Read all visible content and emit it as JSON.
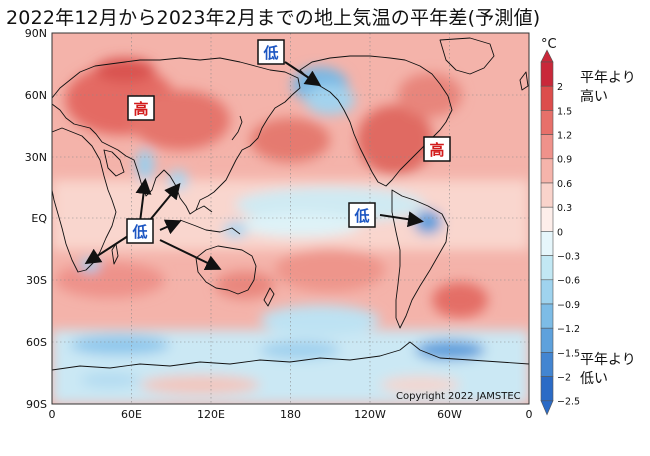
{
  "title": "2022年12月から2023年2月までの地上気温の平年差(予測値)",
  "map": {
    "lat_labels": [
      "90N",
      "60N",
      "30N",
      "EQ",
      "30S",
      "60S",
      "90S"
    ],
    "lon_labels": [
      "0",
      "60E",
      "120E",
      "180",
      "120W",
      "60W",
      "0"
    ],
    "copyright": "Copyright 2022 JAMSTEC",
    "annotations": {
      "high_label": "高",
      "low_label": "低"
    }
  },
  "legend": {
    "unit": "°C",
    "upper_note_1": "平年より",
    "upper_note_2": "高い",
    "lower_note_1": "平年より",
    "lower_note_2": "低い",
    "ticks": [
      "2",
      "1.5",
      "1.2",
      "0.9",
      "0.6",
      "0.3",
      "0",
      "−0.3",
      "−0.6",
      "−0.9",
      "−1.2",
      "−1.5",
      "−2",
      "−2.5"
    ],
    "colors": [
      "#c9283a",
      "#dc4d4c",
      "#e7706a",
      "#ef928b",
      "#f5b4ab",
      "#f9d3cb",
      "#fdeeea",
      "#e6f6fb",
      "#c2e8f4",
      "#9fd3ee",
      "#7dbce6",
      "#5ea1dc",
      "#4385d1",
      "#2b6bc6"
    ]
  }
}
